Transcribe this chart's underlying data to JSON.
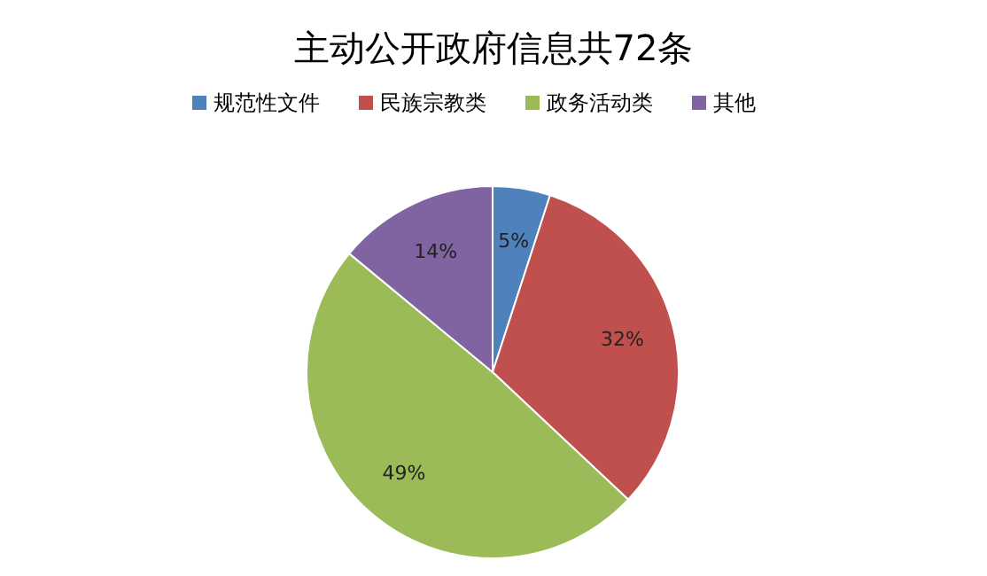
{
  "chart_data": {
    "type": "pie",
    "title": "主动公开政府信息共72条",
    "categories": [
      "规范性文件",
      "民族宗教类",
      "政务活动类",
      "其他"
    ],
    "values": [
      5,
      32,
      49,
      14
    ],
    "colors": [
      "#4f81bd",
      "#c0504d",
      "#9bbb59",
      "#8064a2"
    ],
    "value_labels": [
      "5%",
      "32%",
      "49%",
      "14%"
    ],
    "legend": "top"
  }
}
